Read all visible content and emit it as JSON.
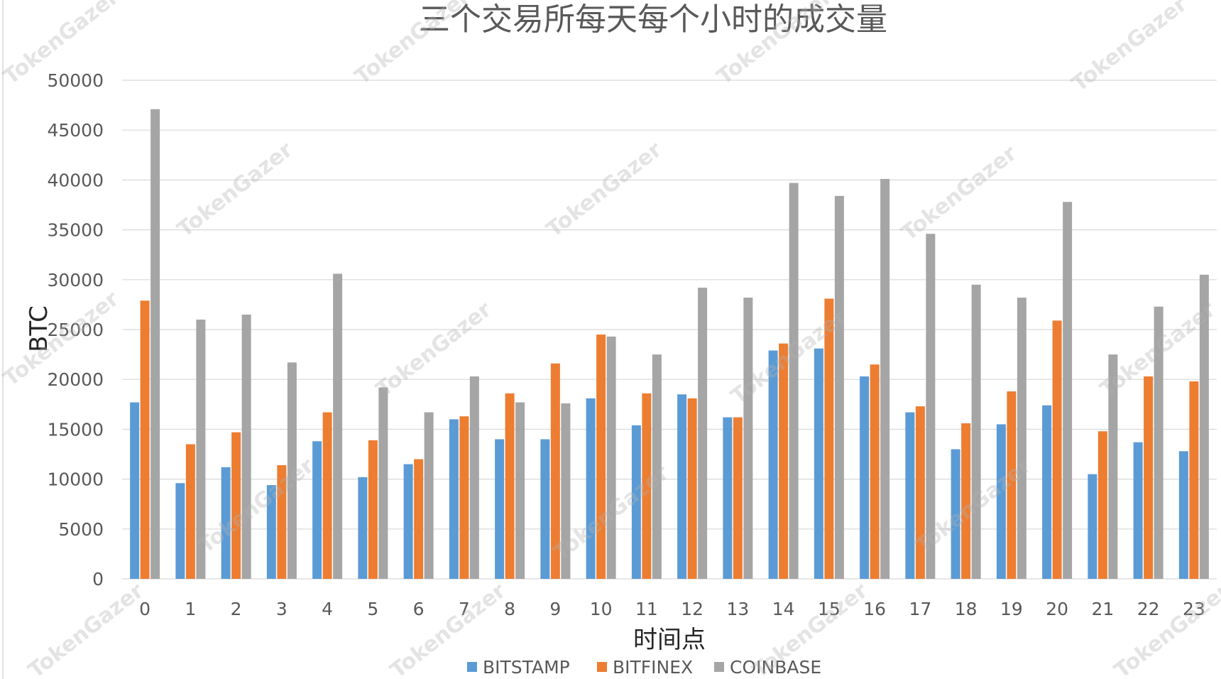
{
  "watermark_text": "TokenGazer",
  "chart_data": {
    "type": "bar",
    "title": "三个交易所每天每个小时的成交量",
    "xlabel": "时间点",
    "ylabel": "BTC",
    "ylim": [
      0,
      50000
    ],
    "yticks": [
      0,
      5000,
      10000,
      15000,
      20000,
      25000,
      30000,
      35000,
      40000,
      45000,
      50000
    ],
    "grid": true,
    "legend_position": "bottom",
    "categories": [
      "0",
      "1",
      "2",
      "3",
      "4",
      "5",
      "6",
      "7",
      "8",
      "9",
      "10",
      "11",
      "12",
      "13",
      "14",
      "15",
      "16",
      "17",
      "18",
      "19",
      "20",
      "21",
      "22",
      "23"
    ],
    "series": [
      {
        "name": "BITSTAMP",
        "color": "#5b9bd5",
        "values": [
          17700,
          9600,
          11200,
          9400,
          13800,
          10200,
          11500,
          16000,
          14000,
          14000,
          18100,
          15400,
          18500,
          16200,
          22900,
          23100,
          20300,
          16700,
          13000,
          15500,
          17400,
          10500,
          13700,
          12800
        ]
      },
      {
        "name": "BITFINEX",
        "color": "#ed7d31",
        "values": [
          27900,
          13500,
          14700,
          11400,
          16700,
          13900,
          12000,
          16300,
          18600,
          21600,
          24500,
          18600,
          18100,
          16200,
          23600,
          28100,
          21500,
          17300,
          15600,
          18800,
          25900,
          14800,
          20300,
          19800
        ]
      },
      {
        "name": "COINBASE",
        "color": "#a5a5a5",
        "values": [
          47100,
          26000,
          26500,
          21700,
          30600,
          19200,
          16700,
          20300,
          17700,
          17600,
          24300,
          22500,
          29200,
          28200,
          39700,
          38400,
          40100,
          34600,
          29500,
          28200,
          37800,
          22500,
          27300,
          30500
        ]
      }
    ]
  }
}
